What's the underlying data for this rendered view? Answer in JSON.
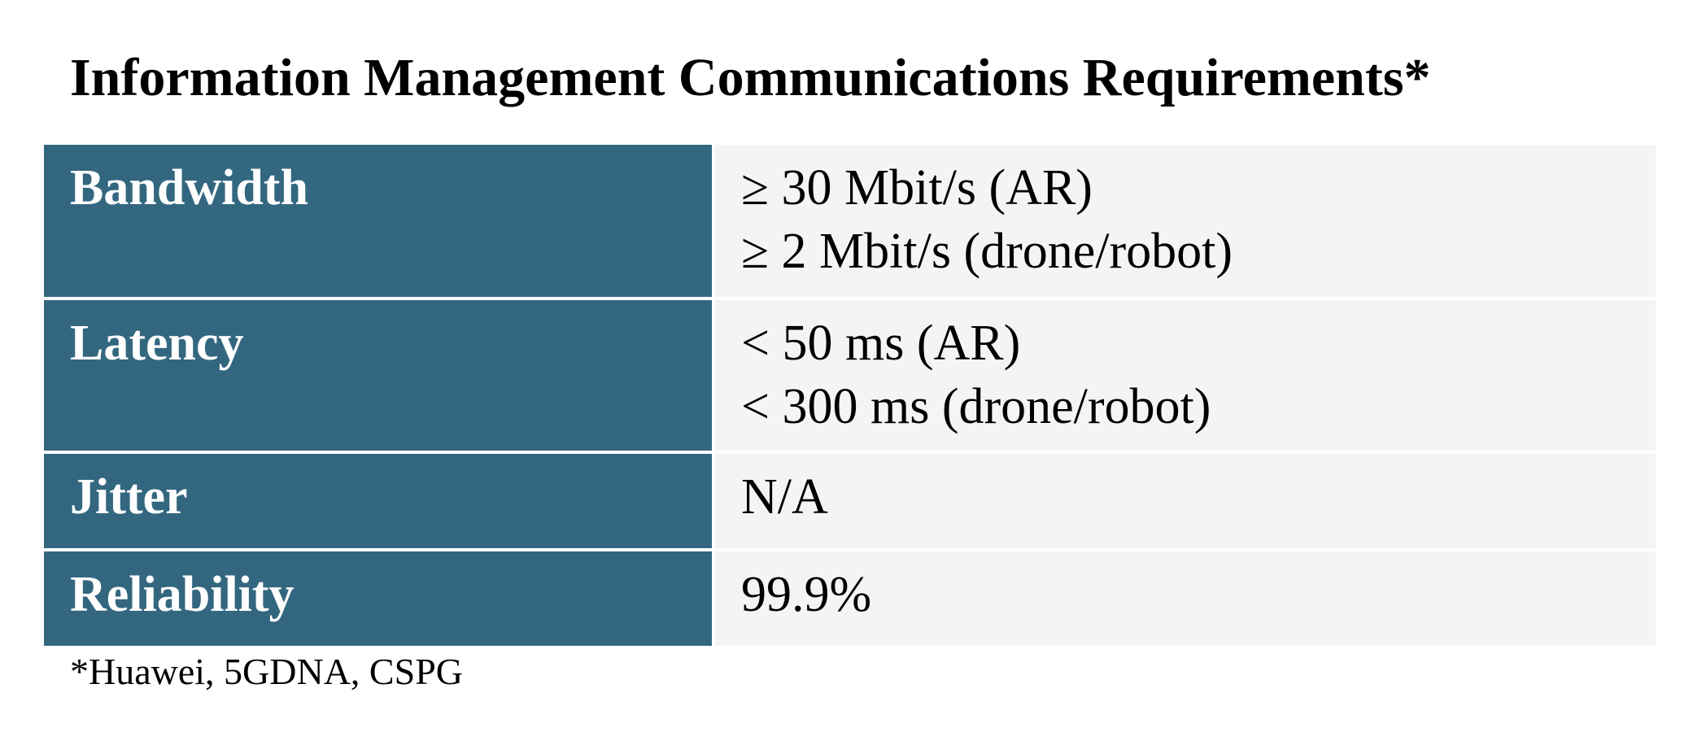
{
  "title": "Information Management Communications Requirements*",
  "rows": [
    {
      "label": "Bandwidth",
      "values": [
        "≥ 30 Mbit/s (AR)",
        "≥ 2 Mbit/s (drone/robot)"
      ]
    },
    {
      "label": "Latency",
      "values": [
        "< 50 ms (AR)",
        "< 300 ms (drone/robot)"
      ]
    },
    {
      "label": "Jitter",
      "values": [
        "N/A"
      ]
    },
    {
      "label": "Reliability",
      "values": [
        "99.9%"
      ]
    }
  ],
  "footnote": "*Huawei, 5GDNA, CSPG",
  "colors": {
    "label_background": "#33677f",
    "value_background": "#f3f5f4"
  }
}
